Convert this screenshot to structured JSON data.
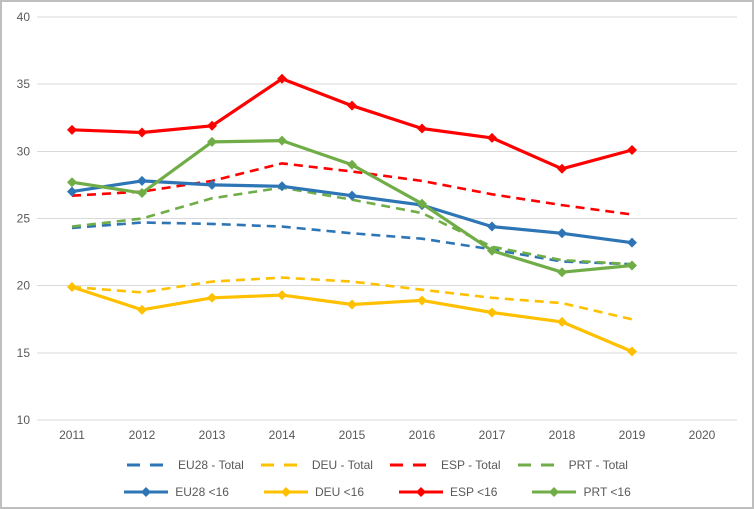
{
  "chart_data": {
    "type": "line",
    "x": [
      2011,
      2012,
      2013,
      2014,
      2015,
      2016,
      2017,
      2018,
      2019
    ],
    "x_axis_ticks": [
      "2011",
      "2012",
      "2013",
      "2014",
      "2015",
      "2016",
      "2017",
      "2018",
      "2019",
      "2020"
    ],
    "y_ticks": [
      10,
      15,
      20,
      25,
      30,
      35,
      40
    ],
    "ylim": [
      10,
      40
    ],
    "grid": "horizontal",
    "legend_position": "bottom",
    "series": [
      {
        "name": "EU28 - Total",
        "style": "dashed",
        "marker": "none",
        "color": "#2E75B6",
        "values": [
          24.3,
          24.7,
          24.6,
          24.4,
          23.9,
          23.5,
          22.7,
          21.8,
          21.6
        ]
      },
      {
        "name": "DEU - Total",
        "style": "dashed",
        "marker": "none",
        "color": "#FFC000",
        "values": [
          19.9,
          19.5,
          20.3,
          20.6,
          20.3,
          19.7,
          19.1,
          18.7,
          17.5
        ]
      },
      {
        "name": "ESP - Total",
        "style": "dashed",
        "marker": "none",
        "color": "#FF0000",
        "values": [
          26.7,
          27.0,
          27.8,
          29.1,
          28.5,
          27.8,
          26.8,
          26.0,
          25.3
        ]
      },
      {
        "name": "PRT - Total",
        "style": "dashed",
        "marker": "none",
        "color": "#70AD47",
        "values": [
          24.4,
          25.0,
          26.5,
          27.3,
          26.4,
          25.4,
          22.9,
          21.9,
          21.6
        ]
      },
      {
        "name": "EU28 <16",
        "style": "solid",
        "marker": "diamond",
        "color": "#2E75B6",
        "values": [
          27.0,
          27.8,
          27.5,
          27.4,
          26.7,
          26.0,
          24.4,
          23.9,
          23.2
        ]
      },
      {
        "name": "DEU <16",
        "style": "solid",
        "marker": "diamond",
        "color": "#FFC000",
        "values": [
          19.9,
          18.2,
          19.1,
          19.3,
          18.6,
          18.9,
          18.0,
          17.3,
          15.1
        ]
      },
      {
        "name": "ESP <16",
        "style": "solid",
        "marker": "diamond",
        "color": "#FF0000",
        "values": [
          31.6,
          31.4,
          31.9,
          35.4,
          33.4,
          31.7,
          31.0,
          28.7,
          30.1
        ]
      },
      {
        "name": "PRT <16",
        "style": "solid",
        "marker": "diamond",
        "color": "#70AD47",
        "values": [
          27.7,
          26.9,
          30.7,
          30.8,
          29.0,
          26.1,
          22.6,
          21.0,
          21.5
        ]
      }
    ],
    "legend_rows": [
      [
        "EU28 - Total",
        "DEU - Total",
        "ESP - Total",
        "PRT - Total"
      ],
      [
        "EU28 <16",
        "DEU <16",
        "ESP <16",
        "PRT <16"
      ]
    ],
    "title": "",
    "xlabel": "",
    "ylabel": ""
  },
  "colors": {
    "grid": "#D9D9D9",
    "axis_text": "#595959",
    "frame_border": "#BEBEBE",
    "background": "#FFFFFF",
    "blue": "#2E75B6",
    "yellow": "#FFC000",
    "red": "#FF0000",
    "green": "#70AD47"
  }
}
